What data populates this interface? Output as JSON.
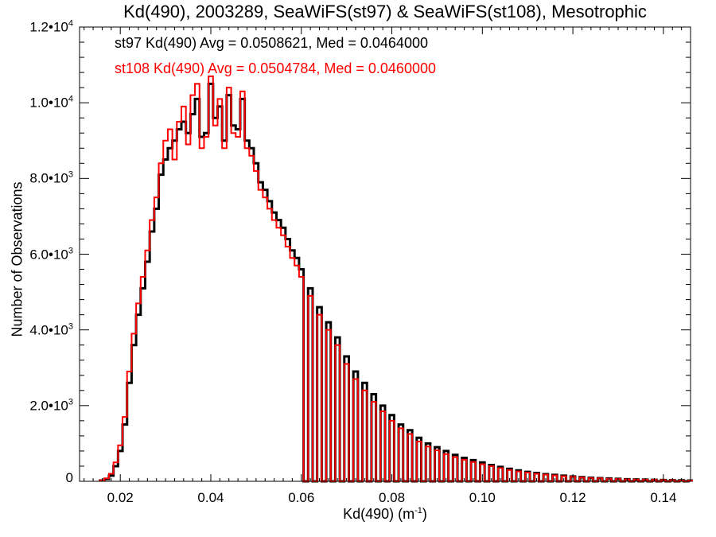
{
  "chart_data": {
    "type": "step histogram",
    "title": "Kd(490), 2003289, SeaWiFS(st97) & SeaWiFS(st108), Mesotrophic",
    "xlabel_base": "Kd(490) (m",
    "xlabel_sup": "-1",
    "xlabel_tail": ")",
    "ylabel": "Number of Observations",
    "xlim": [
      0.011,
      0.146
    ],
    "ylim": [
      0,
      12000
    ],
    "x_ticks": [
      {
        "value": 0.02,
        "label": "0.02"
      },
      {
        "value": 0.04,
        "label": "0.04"
      },
      {
        "value": 0.06,
        "label": "0.06"
      },
      {
        "value": 0.08,
        "label": "0.08"
      },
      {
        "value": 0.1,
        "label": "0.10"
      },
      {
        "value": 0.12,
        "label": "0.12"
      },
      {
        "value": 0.14,
        "label": "0.14"
      }
    ],
    "y_ticks": [
      {
        "value": 0,
        "mantissa": "0",
        "exp": ""
      },
      {
        "value": 2000,
        "mantissa": "2.0•10",
        "exp": "3"
      },
      {
        "value": 4000,
        "mantissa": "4.0•10",
        "exp": "3"
      },
      {
        "value": 6000,
        "mantissa": "6.0•10",
        "exp": "3"
      },
      {
        "value": 8000,
        "mantissa": "8.0•10",
        "exp": "3"
      },
      {
        "value": 10000,
        "mantissa": "1.0•10",
        "exp": "4"
      },
      {
        "value": 12000,
        "mantissa": "1.2•10",
        "exp": "4"
      }
    ],
    "annotations": [
      "st97 Kd(490) Avg = 0.0508621, Med = 0.0464000",
      "st108 Kd(490) Avg = 0.0504784, Med = 0.0460000"
    ],
    "series": [
      {
        "name": "st97",
        "color": "#000000",
        "x": [
          0.016,
          0.017,
          0.018,
          0.019,
          0.02,
          0.021,
          0.022,
          0.023,
          0.024,
          0.025,
          0.026,
          0.027,
          0.028,
          0.029,
          0.03,
          0.031,
          0.032,
          0.033,
          0.034,
          0.035,
          0.036,
          0.037,
          0.038,
          0.039,
          0.04,
          0.041,
          0.042,
          0.043,
          0.044,
          0.045,
          0.046,
          0.047,
          0.048,
          0.049,
          0.05,
          0.051,
          0.052,
          0.053,
          0.054,
          0.055,
          0.056,
          0.057,
          0.058,
          0.059,
          0.06,
          0.062,
          0.064,
          0.066,
          0.068,
          0.07,
          0.072,
          0.074,
          0.076,
          0.078,
          0.08,
          0.082,
          0.084,
          0.086,
          0.088,
          0.09,
          0.092,
          0.094,
          0.096,
          0.098,
          0.1,
          0.102,
          0.104,
          0.106,
          0.108,
          0.11,
          0.112,
          0.114,
          0.116,
          0.118,
          0.12,
          0.122,
          0.124,
          0.126,
          0.128,
          0.13,
          0.132,
          0.134,
          0.136,
          0.138,
          0.14,
          0.142,
          0.144,
          0.146
        ],
        "values": [
          20,
          60,
          150,
          400,
          800,
          1500,
          2600,
          3600,
          4400,
          5100,
          5800,
          6600,
          7200,
          8100,
          8500,
          8800,
          9000,
          9300,
          9500,
          9200,
          9700,
          10100,
          9100,
          9200,
          10500,
          9600,
          9900,
          9000,
          10200,
          9400,
          9300,
          10100,
          9000,
          8800,
          8400,
          7900,
          7700,
          7400,
          7100,
          6900,
          6700,
          6400,
          6100,
          5900,
          5600,
          5100,
          4600,
          4200,
          3800,
          3300,
          2900,
          2600,
          2300,
          2000,
          1750,
          1500,
          1350,
          1150,
          1000,
          900,
          800,
          700,
          620,
          560,
          500,
          430,
          380,
          330,
          290,
          250,
          220,
          190,
          170,
          150,
          130,
          110,
          95,
          85,
          75,
          65,
          55,
          50,
          45,
          40,
          35,
          30,
          25,
          20
        ]
      },
      {
        "name": "st108",
        "color": "#ff0000",
        "x": [
          0.016,
          0.017,
          0.018,
          0.019,
          0.02,
          0.021,
          0.022,
          0.023,
          0.024,
          0.025,
          0.026,
          0.027,
          0.028,
          0.029,
          0.03,
          0.031,
          0.032,
          0.033,
          0.034,
          0.035,
          0.036,
          0.037,
          0.038,
          0.039,
          0.04,
          0.041,
          0.042,
          0.043,
          0.044,
          0.045,
          0.046,
          0.047,
          0.048,
          0.049,
          0.05,
          0.051,
          0.052,
          0.053,
          0.054,
          0.055,
          0.056,
          0.057,
          0.058,
          0.059,
          0.06,
          0.062,
          0.064,
          0.066,
          0.068,
          0.07,
          0.072,
          0.074,
          0.076,
          0.078,
          0.08,
          0.082,
          0.084,
          0.086,
          0.088,
          0.09,
          0.092,
          0.094,
          0.096,
          0.098,
          0.1,
          0.102,
          0.104,
          0.106,
          0.108,
          0.11,
          0.112,
          0.114,
          0.116,
          0.118,
          0.12,
          0.122,
          0.124,
          0.126,
          0.128,
          0.13,
          0.132,
          0.134,
          0.136,
          0.138,
          0.14,
          0.142,
          0.144,
          0.146
        ],
        "values": [
          25,
          80,
          200,
          500,
          950,
          1700,
          2900,
          3900,
          4700,
          5400,
          6100,
          6900,
          7500,
          8400,
          9000,
          9300,
          8500,
          9500,
          9900,
          8900,
          10200,
          10500,
          8800,
          9100,
          10700,
          9400,
          10100,
          8800,
          10400,
          9200,
          9100,
          10300,
          8800,
          8600,
          8200,
          7700,
          7500,
          7200,
          6900,
          6700,
          6500,
          6200,
          5900,
          5700,
          5400,
          4900,
          4400,
          4000,
          3600,
          3100,
          2700,
          2400,
          2100,
          1850,
          1600,
          1400,
          1250,
          1050,
          920,
          820,
          720,
          640,
          570,
          510,
          450,
          400,
          350,
          300,
          260,
          230,
          200,
          175,
          155,
          135,
          120,
          100,
          88,
          78,
          68,
          60,
          52,
          46,
          42,
          36,
          32,
          28,
          22,
          18
        ]
      }
    ]
  }
}
